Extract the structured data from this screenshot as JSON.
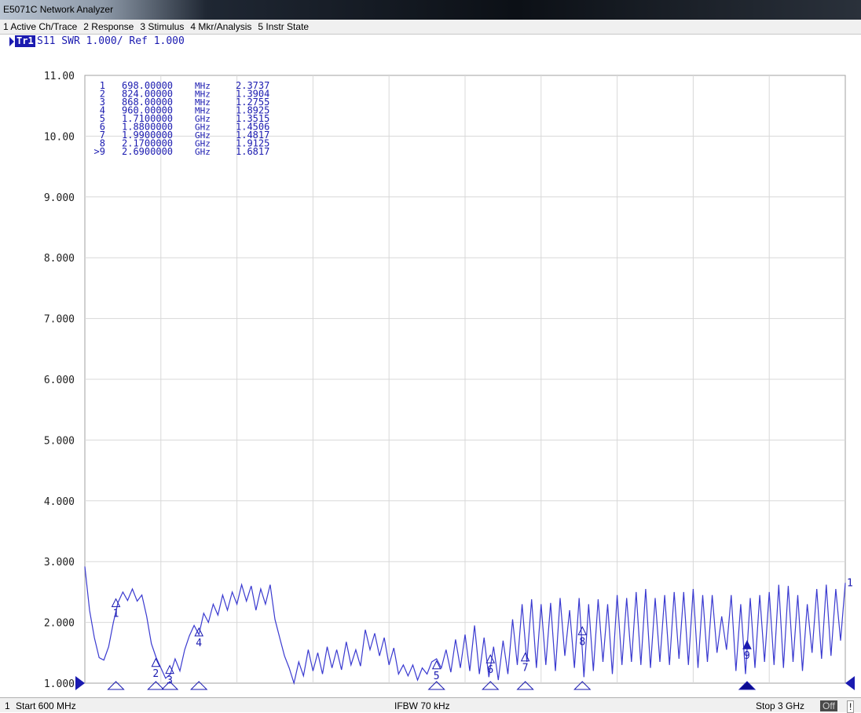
{
  "window": {
    "title": "E5071C Network Analyzer"
  },
  "menu": [
    {
      "label": "1 Active Ch/Trace"
    },
    {
      "label": "2 Response"
    },
    {
      "label": "3 Stimulus"
    },
    {
      "label": "4 Mkr/Analysis"
    },
    {
      "label": "5 Instr State"
    }
  ],
  "trace": {
    "badge": "Tr1",
    "label": "S11  SWR 1.000/ Ref 1.000"
  },
  "status": {
    "channel": "1",
    "start": "Start 600 MHz",
    "ifbw": "IFBW 70 kHz",
    "stop": "Stop 3 GHz",
    "off": "Off",
    "flag": "!"
  },
  "colors": {
    "trace": "#3a3ad0",
    "grid": "#d8d8d8",
    "text": "#1a1ab0"
  },
  "chart_data": {
    "type": "line",
    "ylim": [
      1,
      11
    ],
    "xlim_mhz": [
      600,
      3000
    ],
    "grid": true,
    "y_ticks": [
      "1.000",
      "2.000",
      "3.000",
      "4.000",
      "5.000",
      "6.000",
      "7.000",
      "8.000",
      "9.000",
      "10.00",
      "11.00"
    ],
    "markers": [
      {
        "id": "1",
        "freq_mhz": 698,
        "freq_label": "698.00000 MHz",
        "value": 2.3737,
        "active": false
      },
      {
        "id": "2",
        "freq_mhz": 824,
        "freq_label": "824.00000 MHz",
        "value": 1.3904,
        "active": false
      },
      {
        "id": "3",
        "freq_mhz": 868,
        "freq_label": "868.00000 MHz",
        "value": 1.2755,
        "active": false
      },
      {
        "id": "4",
        "freq_mhz": 960,
        "freq_label": "960.00000 MHz",
        "value": 1.8925,
        "active": false
      },
      {
        "id": "5",
        "freq_mhz": 1710,
        "freq_label": "1.7100000 GHz",
        "value": 1.3515,
        "active": false
      },
      {
        "id": "6",
        "freq_mhz": 1880,
        "freq_label": "1.8800000 GHz",
        "value": 1.4506,
        "active": false
      },
      {
        "id": "7",
        "freq_mhz": 1990,
        "freq_label": "1.9900000 GHz",
        "value": 1.4817,
        "active": false
      },
      {
        "id": "8",
        "freq_mhz": 2170,
        "freq_label": "2.1700000 GHz",
        "value": 1.9125,
        "active": false
      },
      {
        "id": ">9",
        "freq_mhz": 2690,
        "freq_label": "2.6900000 GHz",
        "value": 1.6817,
        "active": true
      }
    ],
    "series": [
      {
        "x": [
          600,
          615,
          630,
          645,
          660,
          675,
          690,
          705,
          720,
          735,
          750,
          765,
          780,
          795,
          810,
          825,
          840,
          855,
          870,
          885,
          900,
          915,
          930,
          945,
          960,
          975,
          990,
          1005,
          1020,
          1035,
          1050,
          1065,
          1080,
          1095,
          1110,
          1125,
          1140,
          1155,
          1170,
          1185,
          1200,
          1215,
          1230,
          1245,
          1260,
          1275,
          1290,
          1305,
          1320,
          1335,
          1350,
          1365,
          1380,
          1395,
          1410,
          1425,
          1440,
          1455,
          1470,
          1485,
          1500,
          1515,
          1530,
          1545,
          1560,
          1575,
          1590,
          1605,
          1620,
          1635,
          1650,
          1665,
          1680,
          1695,
          1710,
          1725,
          1740,
          1755,
          1770,
          1785,
          1800,
          1815,
          1830,
          1845,
          1860,
          1875,
          1890,
          1905,
          1920,
          1935,
          1950,
          1965,
          1980,
          1995,
          2010,
          2025,
          2040,
          2055,
          2070,
          2085,
          2100,
          2115,
          2130,
          2145,
          2160,
          2175,
          2190,
          2205,
          2220,
          2235,
          2250,
          2265,
          2280,
          2295,
          2310,
          2325,
          2340,
          2355,
          2370,
          2385,
          2400,
          2415,
          2430,
          2445,
          2460,
          2475,
          2490,
          2505,
          2520,
          2535,
          2550,
          2565,
          2580,
          2595,
          2610,
          2625,
          2640,
          2655,
          2670,
          2685,
          2700,
          2715,
          2730,
          2745,
          2760,
          2775,
          2790,
          2805,
          2820,
          2835,
          2850,
          2865,
          2880,
          2895,
          2910,
          2925,
          2940,
          2955,
          2970,
          2985,
          3000
        ],
        "values": [
          2.92,
          2.2,
          1.75,
          1.42,
          1.38,
          1.6,
          2.0,
          2.33,
          2.5,
          2.36,
          2.55,
          2.35,
          2.45,
          2.1,
          1.65,
          1.42,
          1.25,
          1.08,
          1.15,
          1.4,
          1.2,
          1.55,
          1.78,
          1.95,
          1.8,
          2.15,
          2.0,
          2.3,
          2.12,
          2.45,
          2.2,
          2.5,
          2.3,
          2.62,
          2.35,
          2.6,
          2.2,
          2.55,
          2.3,
          2.62,
          2.05,
          1.75,
          1.45,
          1.25,
          1.0,
          1.35,
          1.12,
          1.55,
          1.2,
          1.5,
          1.15,
          1.6,
          1.25,
          1.55,
          1.22,
          1.68,
          1.3,
          1.55,
          1.28,
          1.88,
          1.55,
          1.82,
          1.45,
          1.75,
          1.3,
          1.58,
          1.15,
          1.3,
          1.12,
          1.3,
          1.05,
          1.25,
          1.15,
          1.35,
          1.4,
          1.25,
          1.55,
          1.18,
          1.72,
          1.25,
          1.8,
          1.2,
          1.95,
          1.15,
          1.75,
          1.1,
          1.6,
          1.05,
          1.7,
          1.15,
          2.05,
          1.3,
          2.3,
          1.35,
          2.38,
          1.25,
          2.3,
          1.3,
          2.32,
          1.2,
          2.4,
          1.45,
          2.2,
          1.25,
          2.4,
          1.1,
          2.3,
          1.2,
          2.38,
          1.35,
          2.3,
          1.15,
          2.45,
          1.3,
          2.4,
          1.35,
          2.5,
          1.3,
          2.55,
          1.25,
          2.4,
          1.35,
          2.45,
          1.3,
          2.5,
          1.4,
          2.5,
          1.3,
          2.55,
          1.25,
          2.45,
          1.35,
          2.45,
          1.5,
          2.1,
          1.55,
          2.45,
          1.2,
          2.3,
          1.15,
          2.4,
          1.25,
          2.45,
          1.35,
          2.5,
          1.3,
          2.62,
          1.25,
          2.6,
          1.35,
          2.45,
          1.2,
          2.3,
          1.5,
          2.55,
          1.4,
          2.62,
          1.45,
          2.55,
          1.7,
          2.65
        ]
      }
    ]
  }
}
